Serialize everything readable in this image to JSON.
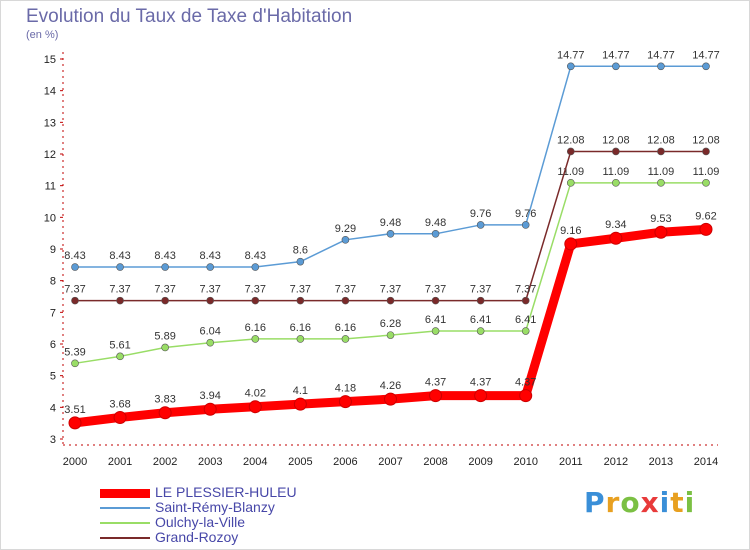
{
  "chart_data": {
    "type": "line",
    "title": "Evolution du Taux de Taxe d'Habitation",
    "units": "(en %)",
    "categories": [
      "2000",
      "2001",
      "2002",
      "2003",
      "2004",
      "2005",
      "2006",
      "2007",
      "2008",
      "2009",
      "2010",
      "2011",
      "2012",
      "2013",
      "2014"
    ],
    "ylim": [
      3,
      15
    ],
    "yticks": [
      "3",
      "4",
      "5",
      "6",
      "7",
      "8",
      "9",
      "10",
      "11",
      "12",
      "13",
      "14",
      "15"
    ],
    "grid": false,
    "legend_position": "bottom-left",
    "series": [
      {
        "name": "LE PLESSIER-HULEU",
        "color": "#ff0000",
        "values": [
          3.51,
          3.68,
          3.83,
          3.94,
          4.02,
          4.1,
          4.18,
          4.26,
          4.37,
          4.37,
          4.37,
          9.16,
          9.34,
          9.53,
          9.62
        ],
        "labels": [
          "3.51",
          "3.68",
          "3.83",
          "3.94",
          "4.02",
          "4.1",
          "4.18",
          "4.26",
          "4.37",
          "4.37",
          "4.37",
          "9.16",
          "9.34",
          "9.53",
          "9.62"
        ]
      },
      {
        "name": "Saint-Rémy-Blanzy",
        "color": "#5b9bd5",
        "values": [
          8.43,
          8.43,
          8.43,
          8.43,
          8.43,
          8.6,
          9.29,
          9.48,
          9.48,
          9.76,
          9.76,
          14.77,
          14.77,
          14.77,
          14.77
        ],
        "labels": [
          "8.43",
          "8.43",
          "8.43",
          "8.43",
          "8.43",
          "8.6",
          "9.29",
          "9.48",
          "9.48",
          "9.76",
          "9.76",
          "14.77",
          "14.77",
          "14.77",
          "14.77"
        ]
      },
      {
        "name": "Oulchy-la-Ville",
        "color": "#99dd66",
        "values": [
          5.39,
          5.61,
          5.89,
          6.04,
          6.16,
          6.16,
          6.16,
          6.28,
          6.41,
          6.41,
          6.41,
          11.09,
          11.09,
          11.09,
          11.09
        ],
        "labels": [
          "5.39",
          "5.61",
          "5.89",
          "6.04",
          "6.16",
          "6.16",
          "6.16",
          "6.28",
          "6.41",
          "6.41",
          "6.41",
          "11.09",
          "11.09",
          "11.09",
          "11.09"
        ]
      },
      {
        "name": "Grand-Rozoy",
        "color": "#7a2a2a",
        "values": [
          7.37,
          7.37,
          7.37,
          7.37,
          7.37,
          7.37,
          7.37,
          7.37,
          7.37,
          7.37,
          7.37,
          12.08,
          12.08,
          12.08,
          12.08
        ],
        "labels": [
          "7.37",
          "7.37",
          "7.37",
          "7.37",
          "7.37",
          "7.37",
          "7.37",
          "7.37",
          "7.37",
          "7.37",
          "7.37",
          "12.08",
          "12.08",
          "12.08",
          "12.08"
        ]
      }
    ]
  },
  "logo": {
    "letters": [
      "P",
      "r",
      "o",
      "x",
      "i",
      "t",
      "i"
    ],
    "colors": [
      "#3a8fd8",
      "#e8a020",
      "#7bc043",
      "#e83a3a",
      "#3a8fd8",
      "#e8a020",
      "#7bc043"
    ]
  }
}
